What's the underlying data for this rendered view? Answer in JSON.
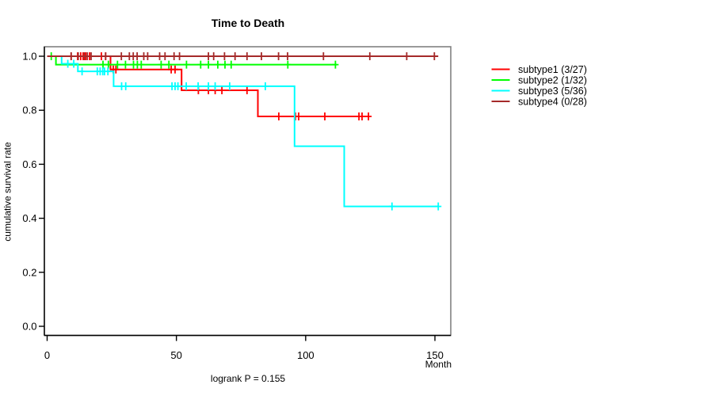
{
  "chart_data": {
    "type": "line",
    "subtype_plot": "kaplan-meier-step",
    "title": "Time to Death",
    "xlabel": "Month",
    "ylabel": "cumulative survival rate",
    "footnote": "logrank P = 0.155",
    "xlim": [
      0,
      156
    ],
    "ylim": [
      0,
      1.04
    ],
    "grid": false,
    "legend_position": "right-outside",
    "x_ticks": [
      {
        "v": 0,
        "label": "0"
      },
      {
        "v": 50,
        "label": "50"
      },
      {
        "v": 100,
        "label": "100"
      },
      {
        "v": 150,
        "label": "150"
      }
    ],
    "y_ticks": [
      {
        "v": 0.0,
        "label": "0.0"
      },
      {
        "v": 0.2,
        "label": "0.2"
      },
      {
        "v": 0.4,
        "label": "0.4"
      },
      {
        "v": 0.6,
        "label": "0.6"
      },
      {
        "v": 0.8,
        "label": "0.8"
      },
      {
        "v": 1.0,
        "label": "1.0"
      }
    ],
    "series": [
      {
        "name": "subtype1",
        "label": "subtype1 (3/27)",
        "events": 3,
        "n": 27,
        "color": "#FF0000",
        "steps": [
          [
            0,
            1
          ],
          [
            24.5,
            1
          ],
          [
            24.5,
            0.951
          ],
          [
            52,
            0.951
          ],
          [
            52,
            0.874
          ],
          [
            81.5,
            0.874
          ],
          [
            81.5,
            0.777
          ],
          [
            124.5,
            0.777
          ]
        ],
        "censors": [
          [
            9.3,
            1
          ],
          [
            11.8,
            1
          ],
          [
            13,
            1
          ],
          [
            13.9,
            1
          ],
          [
            14.9,
            1
          ],
          [
            16.4,
            1
          ],
          [
            21,
            1
          ],
          [
            22.6,
            1
          ],
          [
            25.6,
            0.951
          ],
          [
            26.6,
            0.951
          ],
          [
            48,
            0.951
          ],
          [
            49.5,
            0.951
          ],
          [
            58.5,
            0.874
          ],
          [
            62.4,
            0.874
          ],
          [
            65,
            0.874
          ],
          [
            67.6,
            0.874
          ],
          [
            77.3,
            0.874
          ],
          [
            89.6,
            0.777
          ],
          [
            96,
            0.777
          ],
          [
            97.3,
            0.777
          ],
          [
            107.4,
            0.777
          ],
          [
            120.6,
            0.777
          ],
          [
            121.8,
            0.777
          ],
          [
            124.3,
            0.777
          ]
        ]
      },
      {
        "name": "subtype2",
        "label": "subtype2 (1/32)",
        "events": 1,
        "n": 32,
        "color": "#00FF00",
        "steps": [
          [
            0,
            1
          ],
          [
            3.4,
            1
          ],
          [
            3.4,
            0.969
          ],
          [
            112,
            0.969
          ]
        ],
        "censors": [
          [
            1.6,
            1
          ],
          [
            21.6,
            0.969
          ],
          [
            23.7,
            0.969
          ],
          [
            27.2,
            0.969
          ],
          [
            30.3,
            0.969
          ],
          [
            33.4,
            0.969
          ],
          [
            34.9,
            0.969
          ],
          [
            36.4,
            0.969
          ],
          [
            44.1,
            0.969
          ],
          [
            47.1,
            0.969
          ],
          [
            53.9,
            0.969
          ],
          [
            59.4,
            0.969
          ],
          [
            62.4,
            0.969
          ],
          [
            66,
            0.969
          ],
          [
            68.8,
            0.969
          ],
          [
            71.2,
            0.969
          ],
          [
            93.1,
            0.969
          ],
          [
            111.5,
            0.969
          ]
        ]
      },
      {
        "name": "subtype3",
        "label": "subtype3 (5/36)",
        "events": 5,
        "n": 36,
        "color": "#00FFFF",
        "steps": [
          [
            0,
            1
          ],
          [
            5.6,
            1
          ],
          [
            5.6,
            0.972
          ],
          [
            11.9,
            0.972
          ],
          [
            11.9,
            0.944
          ],
          [
            25.7,
            0.944
          ],
          [
            25.7,
            0.889
          ],
          [
            95.7,
            0.889
          ],
          [
            95.7,
            0.667
          ],
          [
            114.9,
            0.667
          ],
          [
            114.9,
            0.444
          ],
          [
            151.3,
            0.444
          ]
        ],
        "censors": [
          [
            8,
            0.972
          ],
          [
            10.3,
            0.972
          ],
          [
            13.5,
            0.944
          ],
          [
            19.4,
            0.944
          ],
          [
            20.5,
            0.944
          ],
          [
            21.5,
            0.944
          ],
          [
            22.2,
            0.944
          ],
          [
            23.5,
            0.944
          ],
          [
            28.8,
            0.889
          ],
          [
            30.4,
            0.889
          ],
          [
            48.3,
            0.889
          ],
          [
            49.5,
            0.889
          ],
          [
            50.6,
            0.889
          ],
          [
            53.8,
            0.889
          ],
          [
            58.4,
            0.889
          ],
          [
            62.4,
            0.889
          ],
          [
            65,
            0.889
          ],
          [
            70.6,
            0.889
          ],
          [
            84.4,
            0.889
          ],
          [
            133.4,
            0.444
          ],
          [
            151.3,
            0.444
          ]
        ]
      },
      {
        "name": "subtype4",
        "label": "subtype4 (0/28)",
        "events": 0,
        "n": 28,
        "color": "#A52A2A",
        "steps": [
          [
            0,
            1
          ],
          [
            151.3,
            1
          ]
        ],
        "censors": [
          [
            9.3,
            1
          ],
          [
            12,
            1
          ],
          [
            14.4,
            1
          ],
          [
            15.5,
            1
          ],
          [
            17,
            1
          ],
          [
            22.6,
            1
          ],
          [
            28.7,
            1
          ],
          [
            31.8,
            1
          ],
          [
            33.3,
            1
          ],
          [
            34.8,
            1
          ],
          [
            37.4,
            1
          ],
          [
            38.9,
            1
          ],
          [
            43.5,
            1
          ],
          [
            45.6,
            1
          ],
          [
            49.1,
            1
          ],
          [
            51.2,
            1
          ],
          [
            62.4,
            1
          ],
          [
            64.4,
            1
          ],
          [
            68.6,
            1
          ],
          [
            72.7,
            1
          ],
          [
            77.3,
            1
          ],
          [
            82.9,
            1
          ],
          [
            89.5,
            1
          ],
          [
            93,
            1
          ],
          [
            106.9,
            1
          ],
          [
            124.8,
            1
          ],
          [
            139.1,
            1
          ],
          [
            149.8,
            1
          ]
        ]
      }
    ]
  }
}
